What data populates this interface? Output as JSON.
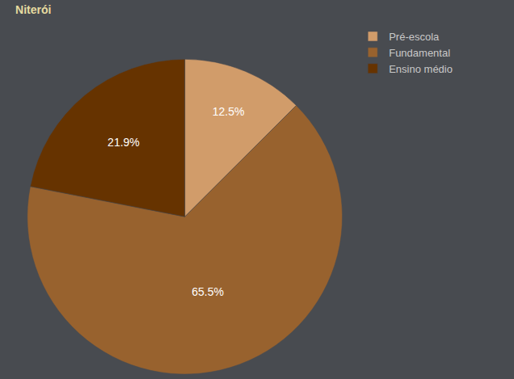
{
  "chart_data": {
    "type": "pie",
    "title": "Niterói",
    "categories": [
      "Pré-escola",
      "Fundamental",
      "Ensino médio"
    ],
    "values": [
      12.5,
      65.5,
      21.9
    ],
    "value_labels": [
      "12.5%",
      "65.5%",
      "21.9%"
    ],
    "colors": [
      "#d19c6a",
      "#98622e",
      "#663300"
    ],
    "data_labels": true,
    "legend": "top right"
  }
}
